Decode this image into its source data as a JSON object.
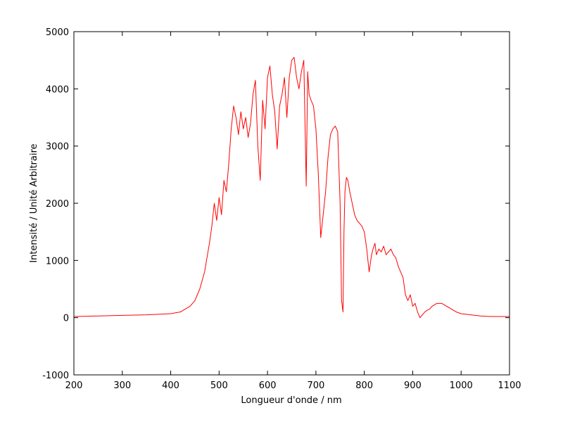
{
  "chart_data": {
    "type": "line",
    "title": "",
    "xlabel": "Longueur d'onde / nm",
    "ylabel": "Intensité / Unité Arbitraire",
    "xlim": [
      200,
      1100
    ],
    "ylim": [
      -1000,
      5000
    ],
    "xticks": [
      200,
      300,
      400,
      500,
      600,
      700,
      800,
      900,
      1000,
      1100
    ],
    "yticks": [
      -1000,
      0,
      1000,
      2000,
      3000,
      4000,
      5000
    ],
    "xtick_labels": [
      "200",
      "300",
      "400",
      "500",
      "600",
      "700",
      "800",
      "900",
      "1000",
      "1100"
    ],
    "ytick_labels": [
      "-1000",
      "0",
      "1000",
      "2000",
      "3000",
      "4000",
      "5000"
    ],
    "grid": false,
    "legend": "none",
    "series": [
      {
        "color": "#ff0000",
        "x": [
          200,
          250,
          300,
          350,
          400,
          420,
          440,
          450,
          460,
          470,
          480,
          485,
          490,
          495,
          500,
          505,
          510,
          515,
          520,
          525,
          530,
          535,
          540,
          545,
          550,
          555,
          560,
          565,
          570,
          575,
          580,
          585,
          590,
          595,
          600,
          605,
          610,
          615,
          620,
          625,
          630,
          635,
          640,
          645,
          650,
          655,
          660,
          665,
          670,
          675,
          680,
          683,
          686,
          690,
          695,
          700,
          705,
          710,
          715,
          720,
          725,
          730,
          735,
          740,
          745,
          750,
          753,
          756,
          758,
          760,
          763,
          766,
          770,
          775,
          780,
          785,
          790,
          795,
          800,
          805,
          810,
          815,
          818,
          822,
          825,
          830,
          835,
          840,
          845,
          850,
          855,
          860,
          865,
          870,
          875,
          880,
          885,
          890,
          895,
          900,
          905,
          910,
          915,
          920,
          925,
          930,
          935,
          940,
          950,
          960,
          970,
          980,
          990,
          1000,
          1020,
          1040,
          1060,
          1080,
          1100
        ],
        "y": [
          20,
          30,
          40,
          50,
          70,
          100,
          200,
          300,
          500,
          800,
          1300,
          1600,
          2000,
          1700,
          2100,
          1800,
          2400,
          2200,
          2700,
          3300,
          3700,
          3500,
          3200,
          3600,
          3300,
          3500,
          3150,
          3400,
          3900,
          4150,
          3000,
          2400,
          3800,
          3300,
          4200,
          4400,
          3900,
          3600,
          2950,
          3700,
          3900,
          4200,
          3500,
          4200,
          4500,
          4550,
          4200,
          4000,
          4300,
          4500,
          2300,
          4300,
          3900,
          3800,
          3700,
          3300,
          2500,
          1400,
          1800,
          2200,
          2800,
          3200,
          3300,
          3350,
          3250,
          2000,
          300,
          100,
          1500,
          2200,
          2450,
          2400,
          2200,
          2000,
          1800,
          1700,
          1650,
          1600,
          1500,
          1200,
          800,
          1100,
          1200,
          1300,
          1100,
          1200,
          1150,
          1250,
          1100,
          1150,
          1200,
          1100,
          1050,
          900,
          800,
          700,
          400,
          300,
          400,
          200,
          250,
          100,
          0,
          50,
          100,
          130,
          150,
          200,
          250,
          250,
          200,
          150,
          100,
          70,
          50,
          30,
          20,
          20,
          20
        ]
      }
    ]
  }
}
